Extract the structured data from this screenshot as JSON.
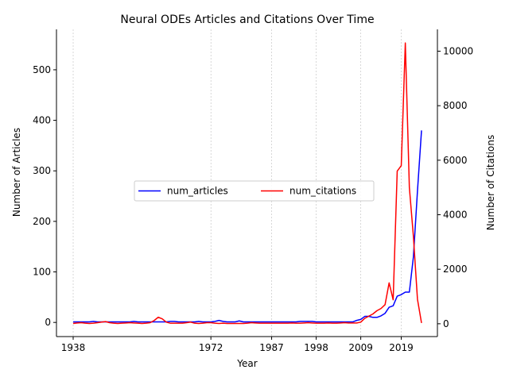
{
  "chart_data": {
    "type": "line",
    "title": "Neural ODEs Articles and Citations Over Time",
    "xlabel": "Year",
    "ylabel_left": "Number of Articles",
    "ylabel_right": "Number of Citations",
    "x_ticks": [
      1938,
      1972,
      1987,
      1998,
      2009,
      2019
    ],
    "y_left_ticks": [
      0,
      100,
      200,
      300,
      400,
      500
    ],
    "y_right_ticks": [
      0,
      2000,
      4000,
      6000,
      8000,
      10000
    ],
    "y_left_range": [
      -28,
      580
    ],
    "y_right_range": [
      -470,
      10800
    ],
    "x_grid": true,
    "y_grid": false,
    "legend_position": "center",
    "categories": [
      "1938",
      "1939",
      "1940",
      "1941",
      "1942",
      "1943",
      "1944",
      "1945",
      "1946",
      "1947",
      "1948",
      "1949",
      "1950",
      "1951",
      "1952",
      "1953",
      "1954",
      "1955",
      "1956",
      "1957",
      "1958",
      "1959",
      "1960",
      "1961",
      "1962",
      "1963",
      "1964",
      "1965",
      "1966",
      "1967",
      "1968",
      "1969",
      "1970",
      "1971",
      "1972",
      "1973",
      "1974",
      "1975",
      "1976",
      "1977",
      "1978",
      "1979",
      "1980",
      "1981",
      "1982",
      "1983",
      "1984",
      "1985",
      "1986",
      "1987",
      "1988",
      "1989",
      "1990",
      "1991",
      "1992",
      "1993",
      "1994",
      "1995",
      "1996",
      "1997",
      "1998",
      "1999",
      "2000",
      "2001",
      "2002",
      "2003",
      "2004",
      "2005",
      "2006",
      "2007",
      "2008",
      "2009",
      "2010",
      "2011",
      "2012",
      "2013",
      "2014",
      "2015",
      "2016",
      "2017",
      "2018",
      "2019",
      "2020",
      "2021",
      "2022",
      "2023",
      "2024"
    ],
    "series": [
      {
        "name": "num_articles",
        "color": "#0000ff",
        "axis": "left",
        "values": [
          1,
          1,
          1,
          1,
          1,
          2,
          1,
          1,
          1,
          1,
          1,
          1,
          1,
          1,
          1,
          2,
          1,
          1,
          1,
          1,
          1,
          1,
          1,
          1,
          2,
          2,
          1,
          1,
          1,
          1,
          1,
          2,
          1,
          1,
          1,
          2,
          4,
          2,
          1,
          1,
          1,
          3,
          1,
          1,
          1,
          1,
          1,
          1,
          1,
          1,
          1,
          1,
          1,
          1,
          1,
          1,
          2,
          2,
          2,
          2,
          1,
          1,
          1,
          1,
          1,
          1,
          1,
          1,
          1,
          1,
          4,
          6,
          12,
          12,
          10,
          10,
          13,
          18,
          30,
          33,
          52,
          55,
          60,
          60,
          130,
          260,
          380
        ]
      },
      {
        "name": "num_citations",
        "color": "#ff0000",
        "axis": "right",
        "values": [
          10,
          30,
          40,
          20,
          10,
          20,
          40,
          60,
          80,
          40,
          20,
          10,
          20,
          30,
          40,
          30,
          20,
          10,
          20,
          40,
          120,
          240,
          180,
          60,
          20,
          20,
          20,
          20,
          40,
          60,
          20,
          10,
          20,
          40,
          40,
          20,
          10,
          20,
          10,
          10,
          10,
          10,
          10,
          20,
          40,
          30,
          20,
          20,
          20,
          20,
          20,
          20,
          20,
          20,
          30,
          20,
          20,
          30,
          40,
          30,
          20,
          20,
          20,
          30,
          20,
          20,
          30,
          40,
          30,
          30,
          30,
          60,
          200,
          280,
          360,
          480,
          560,
          700,
          1500,
          880,
          5600,
          5800,
          10300,
          5000,
          3200,
          900,
          30
        ]
      }
    ]
  }
}
